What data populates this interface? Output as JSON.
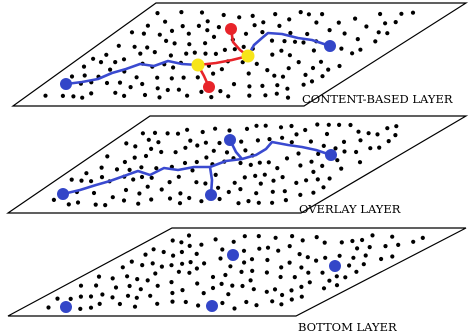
{
  "colors": {
    "background": "#ffffff",
    "outline": "#000000",
    "dot": "#000000",
    "node_blue": "#3346c8",
    "path_blue": "#3a4ad0",
    "node_yellow": "#f7e51a",
    "node_red": "#e8242a",
    "path_red": "#e8242a"
  },
  "layers": [
    {
      "id": "content",
      "label": "CONTENT-BASED LAYER"
    },
    {
      "id": "overlay",
      "label": "OVERLAY LAYER"
    },
    {
      "id": "bottom",
      "label": "BOTTOM LAYER"
    }
  ]
}
